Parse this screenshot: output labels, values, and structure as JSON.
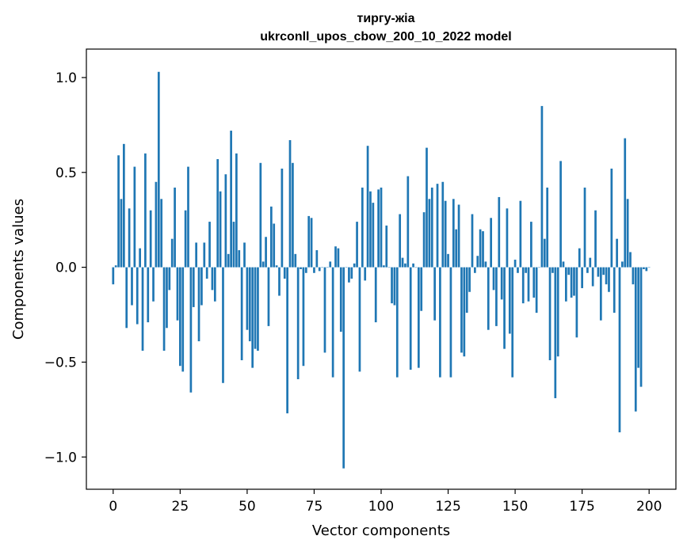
{
  "chart_data": {
    "type": "bar",
    "title_line1": "тиргу-жіа",
    "title_line2": "ukrconll_upos_cbow_200_10_2022 model",
    "xlabel": "Vector components",
    "ylabel": "Components values",
    "xlim": [
      -10,
      210
    ],
    "ylim": [
      -1.17,
      1.15
    ],
    "xticks": [
      0,
      25,
      50,
      75,
      100,
      125,
      150,
      175,
      200
    ],
    "yticks": [
      -1.0,
      -0.5,
      0.0,
      0.5,
      1.0
    ],
    "ytick_labels": [
      "−1.0",
      "−0.5",
      "0.0",
      "0.5",
      "1.0"
    ],
    "bar_color": "#1f77b4",
    "grid": false,
    "values": [
      -0.09,
      0.01,
      0.59,
      0.36,
      0.65,
      -0.32,
      0.31,
      -0.2,
      0.53,
      -0.3,
      0.1,
      -0.44,
      0.6,
      -0.29,
      0.3,
      -0.18,
      0.45,
      1.03,
      0.36,
      -0.44,
      -0.32,
      -0.12,
      0.15,
      0.42,
      -0.28,
      -0.52,
      -0.55,
      0.3,
      0.53,
      -0.66,
      -0.21,
      0.13,
      -0.39,
      -0.2,
      0.13,
      -0.06,
      0.24,
      -0.12,
      -0.18,
      0.57,
      0.4,
      -0.61,
      0.49,
      0.07,
      0.72,
      0.24,
      0.6,
      0.09,
      -0.49,
      0.13,
      -0.33,
      -0.39,
      -0.53,
      -0.43,
      -0.44,
      0.55,
      0.03,
      0.16,
      -0.31,
      0.32,
      0.23,
      0.01,
      -0.15,
      0.52,
      -0.06,
      -0.77,
      0.67,
      0.55,
      0.07,
      -0.59,
      -0.01,
      -0.52,
      -0.03,
      0.27,
      0.26,
      -0.03,
      0.09,
      -0.02,
      0.0,
      -0.45,
      0.0,
      0.03,
      -0.58,
      0.11,
      0.1,
      -0.34,
      -1.06,
      0.0,
      -0.08,
      -0.06,
      0.02,
      0.24,
      -0.55,
      0.42,
      -0.07,
      0.64,
      0.4,
      0.34,
      -0.29,
      0.41,
      0.42,
      0.01,
      0.22,
      0.0,
      -0.19,
      -0.2,
      -0.58,
      0.28,
      0.05,
      0.02,
      0.48,
      -0.54,
      0.02,
      0.0,
      -0.53,
      -0.23,
      0.29,
      0.63,
      0.36,
      0.42,
      -0.28,
      0.44,
      -0.58,
      0.45,
      0.35,
      0.07,
      -0.58,
      0.36,
      0.2,
      0.33,
      -0.45,
      -0.47,
      -0.24,
      -0.13,
      0.28,
      -0.03,
      0.06,
      0.2,
      0.19,
      0.03,
      -0.33,
      0.26,
      -0.12,
      -0.31,
      0.37,
      -0.17,
      -0.43,
      0.31,
      -0.35,
      -0.58,
      0.04,
      -0.03,
      0.35,
      -0.19,
      -0.03,
      -0.18,
      0.24,
      -0.16,
      -0.24,
      0.0,
      0.85,
      0.15,
      0.42,
      -0.49,
      -0.03,
      -0.69,
      -0.47,
      0.56,
      0.03,
      -0.18,
      -0.04,
      -0.16,
      -0.15,
      -0.37,
      0.1,
      -0.11,
      0.42,
      -0.03,
      0.05,
      -0.1,
      0.3,
      -0.05,
      -0.28,
      -0.04,
      -0.09,
      -0.13,
      0.52,
      -0.24,
      0.15,
      -0.87,
      0.03,
      0.68,
      0.36,
      0.08,
      -0.09,
      -0.76,
      -0.53,
      -0.63,
      -0.01,
      -0.02,
      0.0
    ]
  }
}
